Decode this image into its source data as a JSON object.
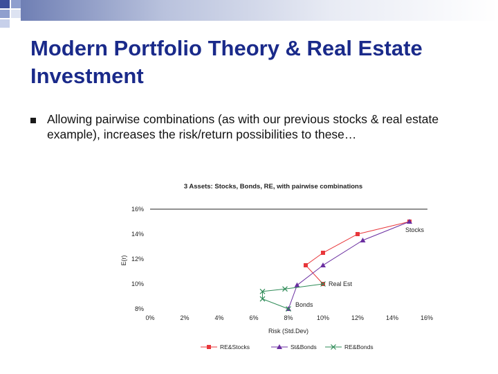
{
  "slide": {
    "title": "Modern Portfolio Theory & Real Estate Investment",
    "bullet": "Allowing pairwise combinations (as with our previous stocks & real estate example), increases the risk/return possibilities to these…"
  },
  "colors": {
    "title": "#1a2a8a",
    "re_stocks": "#e8363a",
    "st_bonds": "#6a2ea0",
    "re_bonds": "#2e8b57"
  },
  "chart_data": {
    "type": "line",
    "title": "3 Assets: Stocks, Bonds, RE, with pairwise combinations",
    "xlabel": "Risk (Std.Dev)",
    "ylabel": "E(r)",
    "xlim": [
      0,
      16
    ],
    "ylim": [
      8,
      16
    ],
    "x_ticks": [
      "0%",
      "2%",
      "4%",
      "6%",
      "8%",
      "10%",
      "12%",
      "14%",
      "16%"
    ],
    "y_ticks": [
      "8%",
      "10%",
      "12%",
      "14%",
      "16%"
    ],
    "grid": false,
    "legend": "bottom",
    "annotations": [
      {
        "label": "Stocks",
        "x": 15,
        "y": 15
      },
      {
        "label": "Real Est",
        "x": 10,
        "y": 10
      },
      {
        "label": "Bonds",
        "x": 8,
        "y": 8
      }
    ],
    "series": [
      {
        "name": "RE&Stocks",
        "marker": "square",
        "x": [
          15,
          12,
          10,
          9,
          10
        ],
        "y": [
          15,
          14,
          12.5,
          11.5,
          10
        ]
      },
      {
        "name": "St&Bonds",
        "marker": "triangle",
        "x": [
          15,
          12.3,
          10,
          8.5,
          8
        ],
        "y": [
          15,
          13.5,
          11.5,
          9.9,
          8
        ]
      },
      {
        "name": "RE&Bonds",
        "marker": "x",
        "x": [
          10,
          7.8,
          6.5,
          6.5,
          8
        ],
        "y": [
          10,
          9.6,
          9.4,
          8.8,
          8
        ]
      }
    ]
  }
}
